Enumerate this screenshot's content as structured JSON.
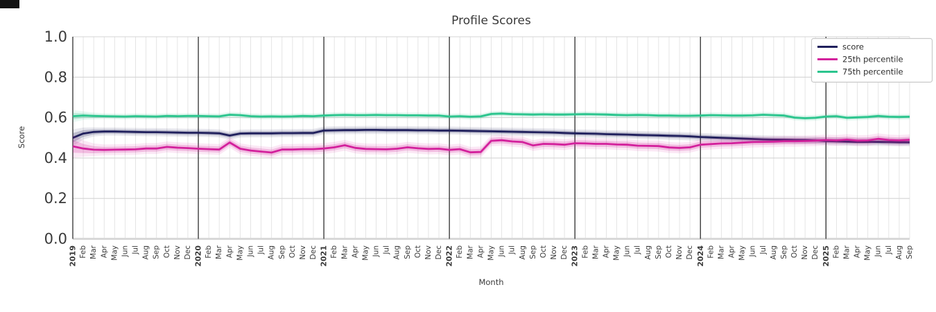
{
  "chart_data": {
    "type": "line",
    "title": "Profile Scores",
    "xlabel": "Month",
    "ylabel": "Score",
    "ylim": [
      0.0,
      1.0
    ],
    "y_ticks": [
      0.0,
      0.2,
      0.4,
      0.6,
      0.8,
      1.0
    ],
    "grid": true,
    "legend_position": "upper right",
    "x_tick_labels": [
      "2019",
      "Feb",
      "Mar",
      "Apr",
      "May",
      "Jun",
      "Jul",
      "Aug",
      "Sep",
      "Oct",
      "Nov",
      "Dec",
      "2020",
      "Feb",
      "Mar",
      "Apr",
      "May",
      "Jun",
      "Jul",
      "Aug",
      "Sep",
      "Oct",
      "Nov",
      "Dec",
      "2021",
      "Feb",
      "Mar",
      "Apr",
      "May",
      "Jun",
      "Jul",
      "Aug",
      "Sep",
      "Oct",
      "Nov",
      "Dec",
      "2022",
      "Feb",
      "Mar",
      "Apr",
      "May",
      "Jun",
      "Jul",
      "Aug",
      "Sep",
      "Oct",
      "Nov",
      "Dec",
      "2023",
      "Feb",
      "Mar",
      "Apr",
      "May",
      "Jun",
      "Jul",
      "Aug",
      "Sep",
      "Oct",
      "Nov",
      "Dec",
      "2024",
      "Feb",
      "Mar",
      "Apr",
      "May",
      "Jun",
      "Jul",
      "Aug",
      "Sep",
      "Oct",
      "Nov",
      "Dec",
      "2025",
      "Feb",
      "Mar",
      "Apr",
      "May",
      "Jun",
      "Jul",
      "Aug",
      "Sep"
    ],
    "year_separator_indices": [
      0,
      12,
      24,
      36,
      48,
      60,
      72
    ],
    "series": [
      {
        "name": "score",
        "color": "#1f1f5c",
        "band_halfwidth": 0.011,
        "values": [
          0.5,
          0.521,
          0.529,
          0.531,
          0.531,
          0.53,
          0.529,
          0.528,
          0.528,
          0.527,
          0.526,
          0.525,
          0.525,
          0.524,
          0.522,
          0.511,
          0.521,
          0.522,
          0.522,
          0.522,
          0.523,
          0.523,
          0.524,
          0.524,
          0.536,
          0.537,
          0.538,
          0.538,
          0.539,
          0.539,
          0.538,
          0.538,
          0.538,
          0.537,
          0.537,
          0.536,
          0.536,
          0.535,
          0.534,
          0.533,
          0.532,
          0.531,
          0.53,
          0.529,
          0.528,
          0.527,
          0.526,
          0.524,
          0.522,
          0.521,
          0.52,
          0.518,
          0.517,
          0.516,
          0.514,
          0.513,
          0.512,
          0.51,
          0.509,
          0.507,
          0.504,
          0.502,
          0.5,
          0.498,
          0.496,
          0.494,
          0.492,
          0.491,
          0.49,
          0.489,
          0.488,
          0.487,
          0.484,
          0.483,
          0.481,
          0.48,
          0.48,
          0.48,
          0.479,
          0.478,
          0.478
        ]
      },
      {
        "name": "25th percentile",
        "color": "#d3219c",
        "band_halfwidth": 0.015,
        "values": [
          0.458,
          0.447,
          0.441,
          0.44,
          0.441,
          0.442,
          0.443,
          0.447,
          0.447,
          0.455,
          0.451,
          0.449,
          0.446,
          0.444,
          0.442,
          0.477,
          0.446,
          0.437,
          0.432,
          0.427,
          0.442,
          0.442,
          0.444,
          0.444,
          0.447,
          0.453,
          0.463,
          0.45,
          0.445,
          0.444,
          0.443,
          0.446,
          0.453,
          0.448,
          0.445,
          0.446,
          0.44,
          0.444,
          0.428,
          0.43,
          0.485,
          0.488,
          0.482,
          0.479,
          0.462,
          0.47,
          0.469,
          0.466,
          0.473,
          0.472,
          0.47,
          0.47,
          0.467,
          0.466,
          0.461,
          0.46,
          0.459,
          0.452,
          0.45,
          0.453,
          0.466,
          0.469,
          0.472,
          0.473,
          0.476,
          0.479,
          0.48,
          0.481,
          0.483,
          0.483,
          0.484,
          0.486,
          0.489,
          0.487,
          0.491,
          0.486,
          0.487,
          0.495,
          0.489,
          0.487,
          0.49
        ]
      },
      {
        "name": "75th percentile",
        "color": "#2cc58e",
        "band_halfwidth": 0.008,
        "values": [
          0.607,
          0.61,
          0.608,
          0.607,
          0.606,
          0.605,
          0.607,
          0.606,
          0.605,
          0.608,
          0.607,
          0.608,
          0.608,
          0.607,
          0.606,
          0.614,
          0.612,
          0.607,
          0.605,
          0.606,
          0.605,
          0.606,
          0.608,
          0.607,
          0.61,
          0.612,
          0.613,
          0.612,
          0.612,
          0.613,
          0.612,
          0.612,
          0.611,
          0.611,
          0.61,
          0.61,
          0.605,
          0.607,
          0.604,
          0.606,
          0.618,
          0.62,
          0.617,
          0.616,
          0.615,
          0.616,
          0.615,
          0.615,
          0.616,
          0.617,
          0.616,
          0.615,
          0.613,
          0.612,
          0.613,
          0.612,
          0.61,
          0.61,
          0.609,
          0.609,
          0.61,
          0.612,
          0.611,
          0.61,
          0.61,
          0.611,
          0.614,
          0.612,
          0.61,
          0.6,
          0.597,
          0.599,
          0.605,
          0.607,
          0.599,
          0.601,
          0.603,
          0.608,
          0.604,
          0.603,
          0.604
        ]
      }
    ],
    "colors": {
      "background": "#ffffff",
      "minor_grid": "#e2e2e2",
      "major_grid": "#d4d4d4",
      "baseline": "#d8d8d8",
      "year_separator": "#2f2f2f",
      "text": "#3a3a3a"
    }
  }
}
